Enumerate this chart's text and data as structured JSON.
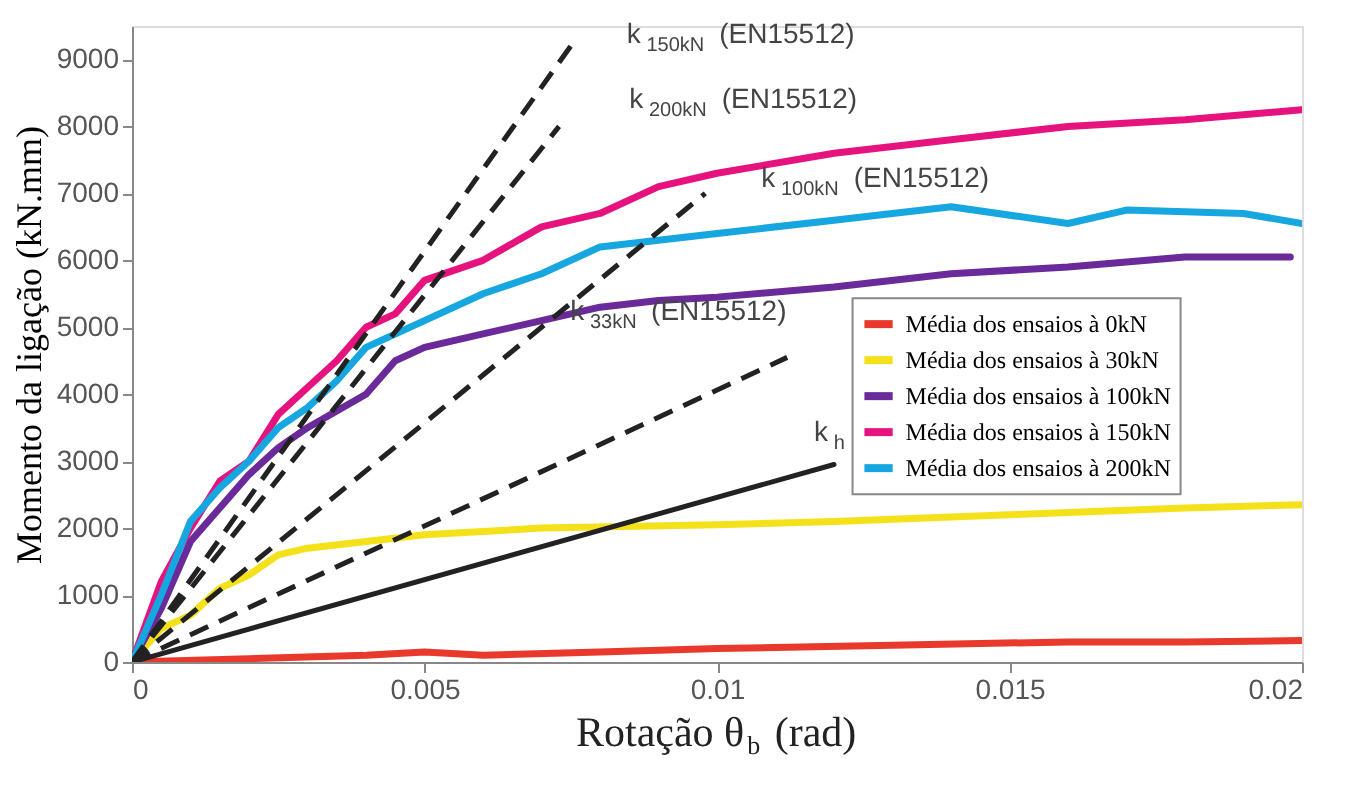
{
  "chart_data": {
    "type": "line",
    "xlabel": "Rotação θ$_{b}$ (rad)",
    "ylabel": "Momento da ligação (kN.mm)",
    "xlim": [
      0,
      0.02
    ],
    "ylim": [
      0,
      9500
    ],
    "xticks": [
      0,
      0.005,
      0.01,
      0.015,
      0.02
    ],
    "yticks": [
      0,
      1000,
      2000,
      3000,
      4000,
      5000,
      6000,
      7000,
      8000,
      9000
    ],
    "grid": false,
    "legend": "right",
    "marker": "none",
    "line_style": "solid",
    "series": [
      {
        "name": "Média dos ensaios à 0kN",
        "color": "#e8392c",
        "x": [
          0,
          0.002,
          0.004,
          0.005,
          0.006,
          0.008,
          0.01,
          0.013,
          0.016,
          0.018,
          0.02
        ],
        "values": [
          0,
          50,
          100,
          150,
          100,
          150,
          200,
          250,
          300,
          300,
          320
        ]
      },
      {
        "name": "Média dos ensaios à 30kN",
        "color": "#f5e11a",
        "x": [
          0,
          0.0005,
          0.001,
          0.0015,
          0.002,
          0.0025,
          0.003,
          0.004,
          0.005,
          0.007,
          0.01,
          0.012,
          0.015,
          0.018,
          0.02
        ],
        "values": [
          0,
          500,
          700,
          1100,
          1300,
          1600,
          1700,
          1800,
          1900,
          2000,
          2050,
          2100,
          2200,
          2300,
          2350
        ]
      },
      {
        "name": "Média dos ensaios à 100kN",
        "color": "#6a2a9a",
        "x": [
          0,
          0.0005,
          0.001,
          0.0015,
          0.002,
          0.0025,
          0.003,
          0.004,
          0.0045,
          0.005,
          0.006,
          0.007,
          0.008,
          0.009,
          0.01,
          0.012,
          0.014,
          0.016,
          0.018,
          0.0198
        ],
        "values": [
          0,
          800,
          1800,
          2300,
          2800,
          3200,
          3500,
          4000,
          4500,
          4700,
          4900,
          5100,
          5300,
          5400,
          5450,
          5600,
          5800,
          5900,
          6050,
          6050
        ]
      },
      {
        "name": "Média dos ensaios à 150kN",
        "color": "#e6137f",
        "x": [
          0,
          0.0005,
          0.001,
          0.0015,
          0.002,
          0.0025,
          0.003,
          0.0035,
          0.004,
          0.0045,
          0.005,
          0.006,
          0.007,
          0.008,
          0.009,
          0.01,
          0.012,
          0.014,
          0.016,
          0.018,
          0.02
        ],
        "values": [
          0,
          1200,
          2000,
          2700,
          3000,
          3700,
          4100,
          4500,
          5000,
          5200,
          5700,
          6000,
          6500,
          6700,
          7100,
          7300,
          7600,
          7800,
          8000,
          8100,
          8250
        ]
      },
      {
        "name": "Média dos ensaios à 200kN",
        "color": "#16a6e0",
        "x": [
          0,
          0.0005,
          0.001,
          0.0015,
          0.002,
          0.0025,
          0.003,
          0.0035,
          0.004,
          0.005,
          0.006,
          0.007,
          0.008,
          0.009,
          0.01,
          0.012,
          0.014,
          0.016,
          0.017,
          0.019,
          0.02
        ],
        "values": [
          0,
          1000,
          2100,
          2600,
          3000,
          3500,
          3800,
          4200,
          4700,
          5100,
          5500,
          5800,
          6200,
          6300,
          6400,
          6600,
          6800,
          6550,
          6750,
          6700,
          6550
        ]
      },
      {
        "color": "#222222",
        "line_style": "dashed",
        "x": [
          0,
          0.0075
        ],
        "values": [
          0,
          9200
        ]
      },
      {
        "color": "#222222",
        "line_style": "dashed",
        "x": [
          0,
          0.0073
        ],
        "values": [
          0,
          8000
        ]
      },
      {
        "color": "#222222",
        "line_style": "dashed",
        "x": [
          0,
          0.0098
        ],
        "values": [
          0,
          7000
        ]
      },
      {
        "color": "#222222",
        "line_style": "dashed",
        "x": [
          0,
          0.0112
        ],
        "values": [
          0,
          4550
        ]
      },
      {
        "color": "#222222",
        "line_style": "solid",
        "x": [
          0,
          0.012
        ],
        "values": [
          0,
          2950
        ]
      }
    ],
    "annotations": [
      {
        "text": "k$_{150kN}$ (EN15512)",
        "x": 0.0075,
        "y": 9000
      },
      {
        "text": "k$_{200kN}$ (EN15512)",
        "x": 0.0072,
        "y": 7800
      },
      {
        "text": "k$_{100kN}$ (EN15512)",
        "x": 0.0098,
        "y": 7100
      },
      {
        "text": "k$_{33kN}$ (EN15512)",
        "x": 0.0092,
        "y": 3800
      },
      {
        "text": "k$_{h}$",
        "x": 0.012,
        "y": 2950
      }
    ]
  }
}
